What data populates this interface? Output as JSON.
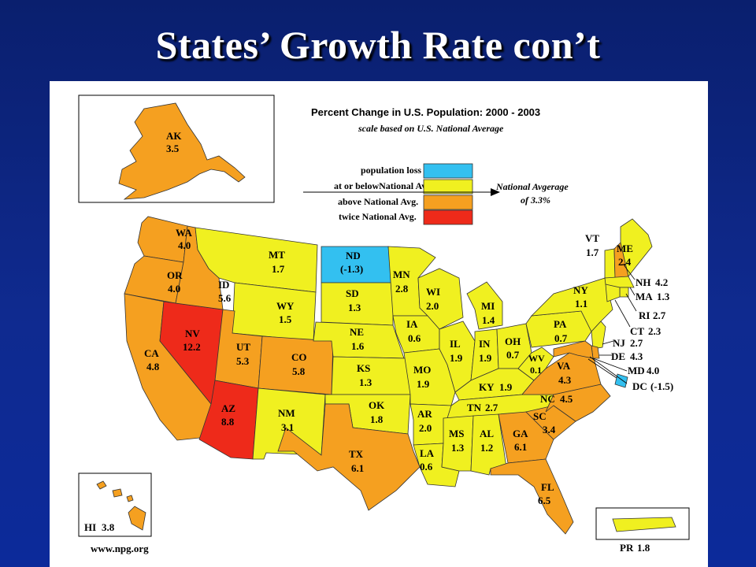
{
  "slide": {
    "title": "States’ Growth Rate con’t"
  },
  "map": {
    "title": "Percent Change in U.S. Population: 2000 - 2003",
    "subtitle": "scale based on U.S. National Average",
    "national_average_line1": "National Avgerage",
    "national_average_line2": "of 3.3%",
    "source": "www.npg.org",
    "legend": [
      {
        "label": "population loss",
        "color": "#33c0f0"
      },
      {
        "label": "at or belowNational Avg.",
        "color": "#f0f020"
      },
      {
        "label": "above National Avg.",
        "color": "#f5a020"
      },
      {
        "label": "twice National Avg.",
        "color": "#ee2a1a"
      }
    ],
    "states": [
      {
        "abbr": "AK",
        "value": "3.5",
        "category": "above"
      },
      {
        "abbr": "WA",
        "value": "4.0",
        "category": "above"
      },
      {
        "abbr": "OR",
        "value": "4.0",
        "category": "above"
      },
      {
        "abbr": "CA",
        "value": "4.8",
        "category": "above"
      },
      {
        "abbr": "NV",
        "value": "12.2",
        "category": "twice"
      },
      {
        "abbr": "ID",
        "value": "5.6",
        "category": "above"
      },
      {
        "abbr": "MT",
        "value": "1.7",
        "category": "below"
      },
      {
        "abbr": "WY",
        "value": "1.5",
        "category": "below"
      },
      {
        "abbr": "UT",
        "value": "5.3",
        "category": "above"
      },
      {
        "abbr": "AZ",
        "value": "8.8",
        "category": "twice"
      },
      {
        "abbr": "CO",
        "value": "5.8",
        "category": "above"
      },
      {
        "abbr": "NM",
        "value": "3.1",
        "category": "below"
      },
      {
        "abbr": "ND",
        "value": "(-1.3)",
        "category": "loss"
      },
      {
        "abbr": "SD",
        "value": "1.3",
        "category": "below"
      },
      {
        "abbr": "NE",
        "value": "1.6",
        "category": "below"
      },
      {
        "abbr": "KS",
        "value": "1.3",
        "category": "below"
      },
      {
        "abbr": "OK",
        "value": "1.8",
        "category": "below"
      },
      {
        "abbr": "TX",
        "value": "6.1",
        "category": "above"
      },
      {
        "abbr": "MN",
        "value": "2.8",
        "category": "below"
      },
      {
        "abbr": "IA",
        "value": "0.6",
        "category": "below"
      },
      {
        "abbr": "MO",
        "value": "1.9",
        "category": "below"
      },
      {
        "abbr": "AR",
        "value": "2.0",
        "category": "below"
      },
      {
        "abbr": "LA",
        "value": "0.6",
        "category": "below"
      },
      {
        "abbr": "WI",
        "value": "2.0",
        "category": "below"
      },
      {
        "abbr": "IL",
        "value": "1.9",
        "category": "below"
      },
      {
        "abbr": "MI",
        "value": "1.4",
        "category": "below"
      },
      {
        "abbr": "IN",
        "value": "1.9",
        "category": "below"
      },
      {
        "abbr": "OH",
        "value": "0.7",
        "category": "below"
      },
      {
        "abbr": "KY",
        "value": "1.9",
        "category": "below"
      },
      {
        "abbr": "TN",
        "value": "2.7",
        "category": "below"
      },
      {
        "abbr": "MS",
        "value": "1.3",
        "category": "below"
      },
      {
        "abbr": "AL",
        "value": "1.2",
        "category": "below"
      },
      {
        "abbr": "GA",
        "value": "6.1",
        "category": "above"
      },
      {
        "abbr": "FL",
        "value": "6.5",
        "category": "above"
      },
      {
        "abbr": "SC",
        "value": "3.4",
        "category": "above"
      },
      {
        "abbr": "NC",
        "value": "4.5",
        "category": "above"
      },
      {
        "abbr": "VA",
        "value": "4.3",
        "category": "above"
      },
      {
        "abbr": "WV",
        "value": "0.1",
        "category": "below"
      },
      {
        "abbr": "PA",
        "value": "0.7",
        "category": "below"
      },
      {
        "abbr": "NY",
        "value": "1.1",
        "category": "below"
      },
      {
        "abbr": "VT",
        "value": "1.7",
        "category": "below"
      },
      {
        "abbr": "ME",
        "value": "2.4",
        "category": "below"
      },
      {
        "abbr": "NH",
        "value": "4.2",
        "category": "above"
      },
      {
        "abbr": "MA",
        "value": "1.3",
        "category": "below"
      },
      {
        "abbr": "RI",
        "value": "2.7",
        "category": "below"
      },
      {
        "abbr": "CT",
        "value": "2.3",
        "category": "below"
      },
      {
        "abbr": "NJ",
        "value": "2.7",
        "category": "below"
      },
      {
        "abbr": "DE",
        "value": "4.3",
        "category": "above"
      },
      {
        "abbr": "MD",
        "value": "4.0",
        "category": "above"
      },
      {
        "abbr": "DC",
        "value": "(-1.5)",
        "category": "loss"
      },
      {
        "abbr": "HI",
        "value": "3.8",
        "category": "above"
      },
      {
        "abbr": "PR",
        "value": "1.8",
        "category": "below"
      }
    ]
  }
}
